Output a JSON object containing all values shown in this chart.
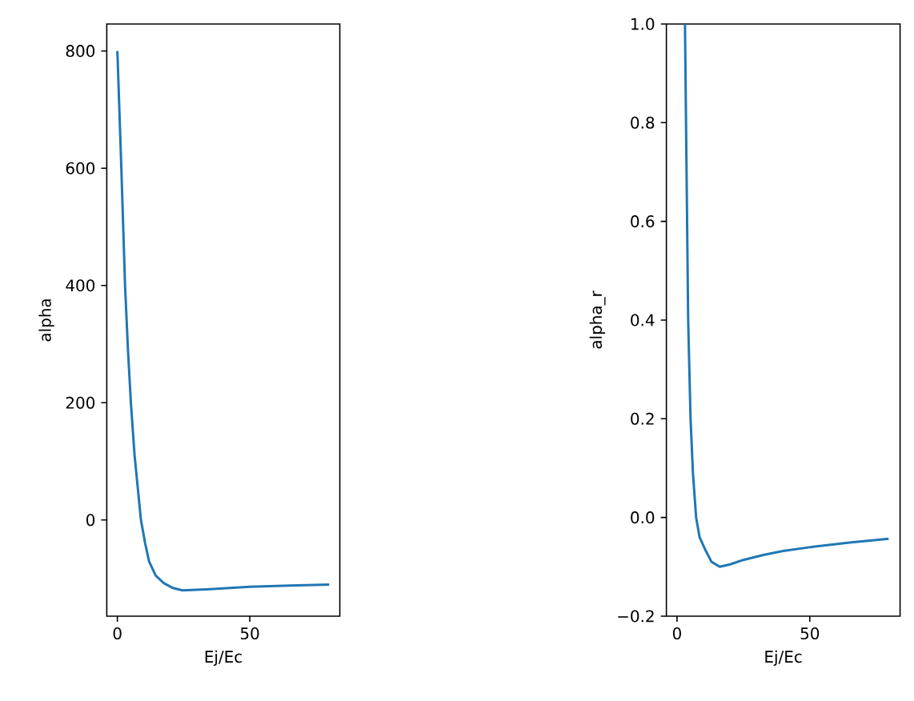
{
  "chart_data": [
    {
      "type": "line",
      "xlabel": "Ej/Ec",
      "ylabel": "alpha",
      "xlim": [
        -4,
        84
      ],
      "ylim": [
        -164,
        846
      ],
      "xticks": [
        0,
        50
      ],
      "yticks": [
        0,
        200,
        400,
        600,
        800
      ],
      "series": [
        {
          "color": "#1f77b4",
          "x": [
            0,
            1.5,
            2.9,
            4,
            5.1,
            6.5,
            8.9,
            10.5,
            12,
            14.5,
            17.6,
            21,
            24.6,
            30,
            35,
            50,
            65,
            80
          ],
          "values": [
            800,
            600,
            400,
            290,
            200,
            110,
            0,
            -40,
            -71,
            -95,
            -108,
            -116,
            -120,
            -119,
            -118,
            -114,
            -112,
            -110
          ]
        }
      ]
    },
    {
      "type": "line",
      "xlabel": "Ej/Ec",
      "ylabel": "alpha_r",
      "xlim": [
        -4,
        84
      ],
      "ylim": [
        -0.2,
        1.0
      ],
      "xticks": [
        0,
        50
      ],
      "yticks": [
        {
          "value": -0.2,
          "label": "−0.2"
        },
        {
          "value": 0.0,
          "label": "0.0"
        },
        0.2,
        0.4,
        0.6,
        {
          "value": 0.8,
          "label": "0.8"
        },
        {
          "value": 1.0,
          "label": "1.0"
        }
      ],
      "series": [
        {
          "color": "#1f77b4",
          "x": [
            3.0,
            3.4,
            4.2,
            5.1,
            6.0,
            7.2,
            8.5,
            10.6,
            13,
            16.1,
            20,
            25,
            32.5,
            40,
            50.4,
            65,
            79.7
          ],
          "values": [
            1.0,
            0.8,
            0.4,
            0.2,
            0.09,
            0.0,
            -0.04,
            -0.065,
            -0.09,
            -0.1,
            -0.095,
            -0.086,
            -0.076,
            -0.068,
            -0.06,
            -0.051,
            -0.043
          ]
        }
      ]
    }
  ]
}
